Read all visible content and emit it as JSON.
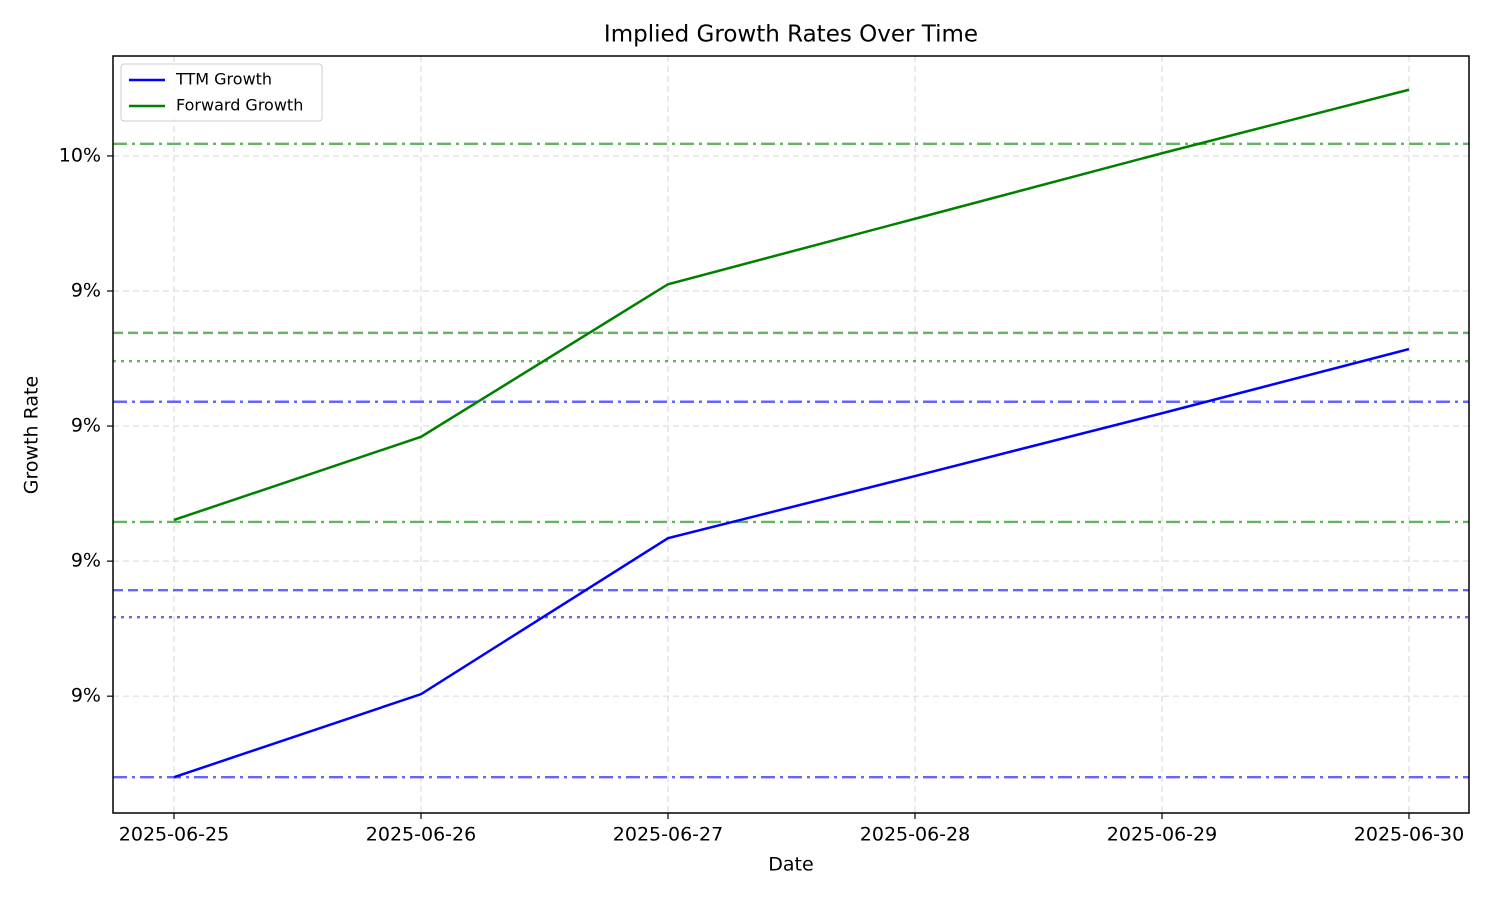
{
  "chart_data": {
    "type": "line",
    "title": "Implied Growth Rates Over Time",
    "xlabel": "Date",
    "ylabel": "Growth Rate",
    "categories": [
      "2025-06-25",
      "2025-06-26",
      "2025-06-27",
      "2025-06-28",
      "2025-06-29",
      "2025-06-30"
    ],
    "series": [
      {
        "name": "TTM Growth",
        "color": "#0000ff",
        "values": [
          8.68,
          8.803,
          9.034,
          9.126,
          9.219,
          9.314
        ]
      },
      {
        "name": "Forward Growth",
        "color": "#008000",
        "values": [
          9.061,
          9.184,
          9.41,
          9.507,
          9.604,
          9.698
        ]
      }
    ],
    "reference_lines": [
      {
        "value": 8.68,
        "color": "#0000ff",
        "style": "dashdot"
      },
      {
        "value": 9.236,
        "color": "#0000ff",
        "style": "dashdot"
      },
      {
        "value": 8.957,
        "color": "#0000ff",
        "style": "dashed"
      },
      {
        "value": 8.917,
        "color": "#0000ff",
        "style": "dotted"
      },
      {
        "value": 9.058,
        "color": "#008000",
        "style": "dashdot"
      },
      {
        "value": 9.618,
        "color": "#008000",
        "style": "dashdot"
      },
      {
        "value": 9.338,
        "color": "#008000",
        "style": "dashed"
      },
      {
        "value": 9.296,
        "color": "#008000",
        "style": "dotted"
      }
    ],
    "ylim": [
      8.627,
      9.748
    ],
    "yticks": [
      {
        "value": 8.8,
        "label": "9%"
      },
      {
        "value": 9.0,
        "label": "9%"
      },
      {
        "value": 9.2,
        "label": "9%"
      },
      {
        "value": 9.4,
        "label": "9%"
      },
      {
        "value": 9.6,
        "label": "10%"
      }
    ],
    "grid": true,
    "legend": "upper-left"
  }
}
